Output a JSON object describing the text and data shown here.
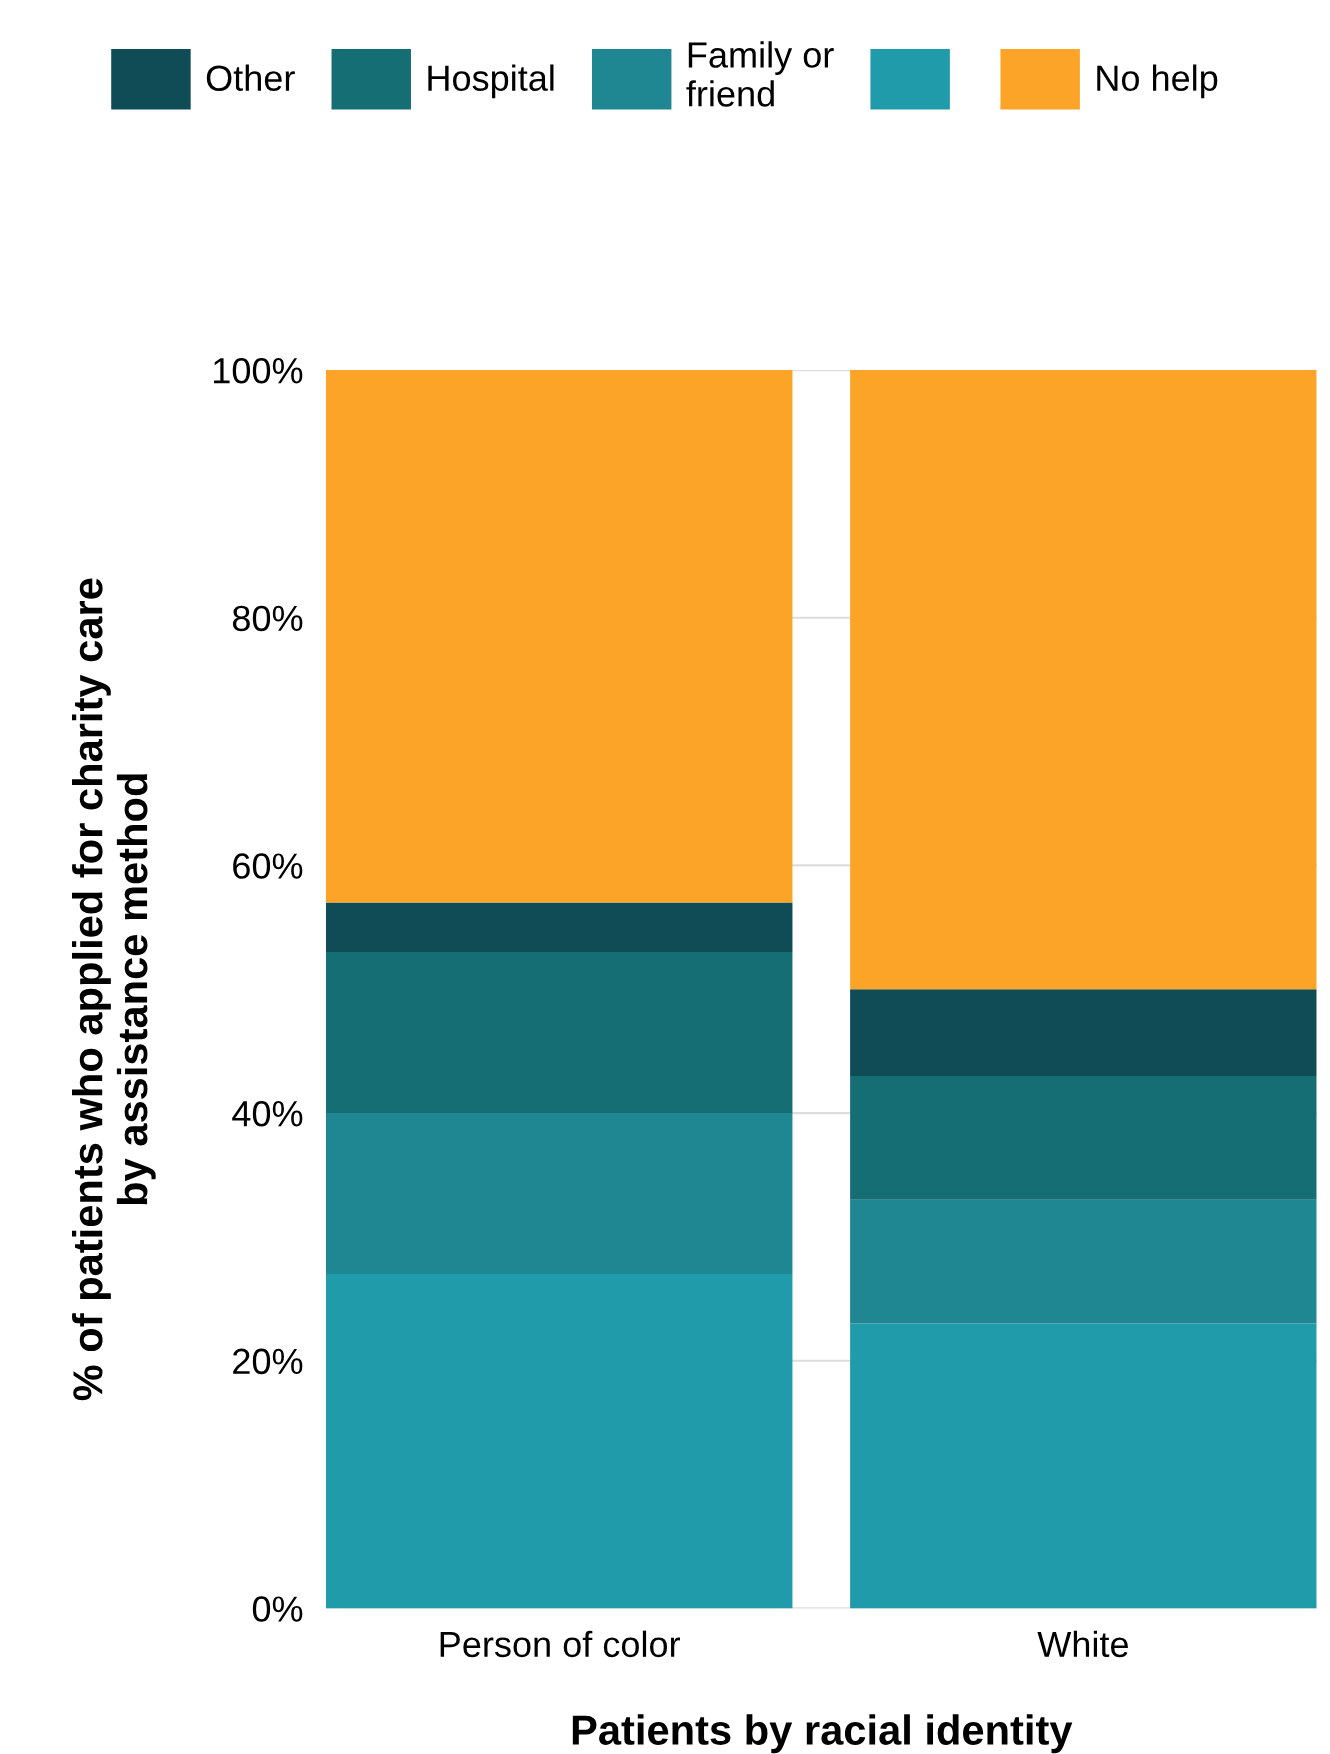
{
  "chart_data": {
    "type": "bar",
    "stacked": true,
    "xlabel": "Patients by racial identity",
    "ylabel": "% of patients who applied for charity care\nby assistance method",
    "categories": [
      "Person of color",
      "White"
    ],
    "series": [
      {
        "color": "#209ba9",
        "values": [
          27,
          23
        ]
      },
      {
        "name": "Family or\nfriend",
        "color": "#1f8791",
        "values": [
          13,
          10
        ]
      },
      {
        "name": "Hospital",
        "color": "#166e75",
        "values": [
          13,
          10
        ]
      },
      {
        "name": "Other",
        "color": "#0f4c55",
        "values": [
          4,
          7
        ]
      },
      {
        "name": "No help",
        "color": "#fba428",
        "values": [
          43,
          50
        ]
      }
    ],
    "ylim": [
      0,
      100
    ],
    "yticks": [
      {
        "value": 0,
        "label": "0%"
      },
      {
        "value": 20,
        "label": "20%"
      },
      {
        "value": 40,
        "label": "40%"
      },
      {
        "value": 60,
        "label": "60%"
      },
      {
        "value": 80,
        "label": "80%"
      },
      {
        "value": 100,
        "label": "100%"
      }
    ],
    "grid": "y",
    "legend": "top"
  }
}
